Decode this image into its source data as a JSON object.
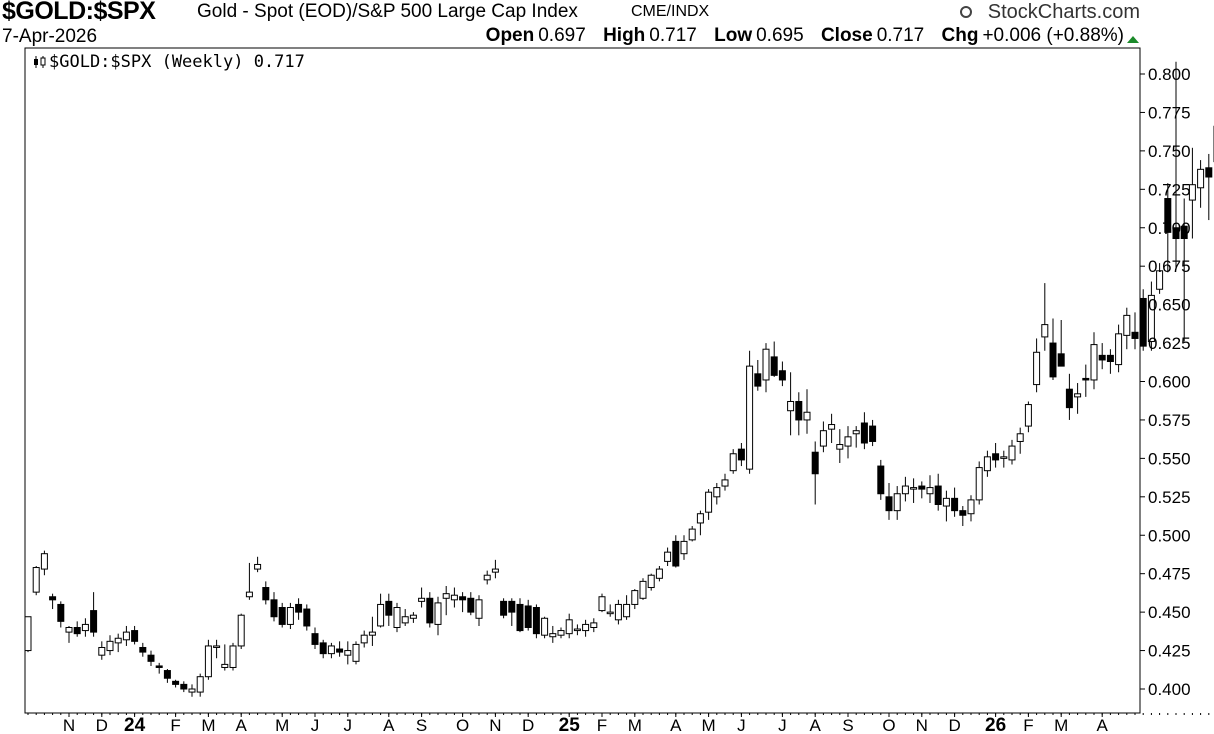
{
  "header": {
    "symbol": "$GOLD:$SPX",
    "description": "Gold - Spot (EOD)/S&P 500 Large Cap Index",
    "exchange": "CME/INDX",
    "brand": "StockCharts.com",
    "date": "7-Apr-2026",
    "ohlc": {
      "open_label": "Open",
      "open": "0.697",
      "high_label": "High",
      "high": "0.717",
      "low_label": "Low",
      "low": "0.695",
      "close_label": "Close",
      "close": "0.717",
      "chg_label": "Chg",
      "chg": "+0.006 (+0.88%)"
    },
    "chg_direction": "up"
  },
  "legend": {
    "text": "$GOLD:$SPX (Weekly) 0.717",
    "icon": "candlestick-icon"
  },
  "colors": {
    "candle_line": "#000000",
    "up_fill": "#ffffff",
    "down_fill": "#000000",
    "up_arrow": "#1b8a2a",
    "grid": "#dddddd"
  },
  "chart_data": {
    "type": "candlestick",
    "title": "$GOLD:$SPX (Weekly) 0.717",
    "xlabel": "",
    "ylabel": "",
    "ylim": [
      0.388,
      0.81
    ],
    "grid": false,
    "y_ticks": [
      "0.400",
      "0.425",
      "0.450",
      "0.475",
      "0.500",
      "0.525",
      "0.550",
      "0.575",
      "0.600",
      "0.625",
      "0.650",
      "0.675",
      "0.700",
      "0.725",
      "0.750",
      "0.775",
      "0.800"
    ],
    "x_labels": [
      {
        "label": "N",
        "week": 5
      },
      {
        "label": "D",
        "week": 9
      },
      {
        "label": "24",
        "week": 13
      },
      {
        "label": "F",
        "week": 18
      },
      {
        "label": "M",
        "week": 22
      },
      {
        "label": "A",
        "week": 26
      },
      {
        "label": "M",
        "week": 31
      },
      {
        "label": "J",
        "week": 35
      },
      {
        "label": "J",
        "week": 39
      },
      {
        "label": "A",
        "week": 44
      },
      {
        "label": "S",
        "week": 48
      },
      {
        "label": "O",
        "week": 53
      },
      {
        "label": "N",
        "week": 57
      },
      {
        "label": "D",
        "week": 61
      },
      {
        "label": "25",
        "week": 66
      },
      {
        "label": "F",
        "week": 70
      },
      {
        "label": "M",
        "week": 74
      },
      {
        "label": "A",
        "week": 79
      },
      {
        "label": "M",
        "week": 83
      },
      {
        "label": "J",
        "week": 87
      },
      {
        "label": "J",
        "week": 92
      },
      {
        "label": "A",
        "week": 96
      },
      {
        "label": "S",
        "week": 100
      },
      {
        "label": "O",
        "week": 105
      },
      {
        "label": "N",
        "week": 109
      },
      {
        "label": "D",
        "week": 113
      },
      {
        "label": "26",
        "week": 118
      },
      {
        "label": "F",
        "week": 122
      },
      {
        "label": "M",
        "week": 126
      },
      {
        "label": "A",
        "week": 131
      }
    ],
    "candles": [
      [
        0.425,
        0.447,
        0.424,
        0.447
      ],
      [
        0.463,
        0.48,
        0.461,
        0.479
      ],
      [
        0.478,
        0.49,
        0.474,
        0.488
      ],
      [
        0.46,
        0.462,
        0.452,
        0.458
      ],
      [
        0.455,
        0.457,
        0.44,
        0.444
      ],
      [
        0.437,
        0.441,
        0.43,
        0.44
      ],
      [
        0.44,
        0.444,
        0.434,
        0.436
      ],
      [
        0.438,
        0.446,
        0.434,
        0.442
      ],
      [
        0.451,
        0.463,
        0.434,
        0.437
      ],
      [
        0.422,
        0.431,
        0.419,
        0.427
      ],
      [
        0.425,
        0.435,
        0.422,
        0.431
      ],
      [
        0.43,
        0.436,
        0.424,
        0.433
      ],
      [
        0.432,
        0.441,
        0.428,
        0.437
      ],
      [
        0.438,
        0.441,
        0.429,
        0.431
      ],
      [
        0.427,
        0.43,
        0.421,
        0.424
      ],
      [
        0.422,
        0.425,
        0.415,
        0.418
      ],
      [
        0.415,
        0.417,
        0.41,
        0.414
      ],
      [
        0.412,
        0.413,
        0.404,
        0.407
      ],
      [
        0.405,
        0.406,
        0.401,
        0.403
      ],
      [
        0.403,
        0.405,
        0.398,
        0.4
      ],
      [
        0.398,
        0.403,
        0.395,
        0.4
      ],
      [
        0.398,
        0.41,
        0.395,
        0.408
      ],
      [
        0.408,
        0.432,
        0.406,
        0.428
      ],
      [
        0.428,
        0.432,
        0.42,
        0.428
      ],
      [
        0.414,
        0.429,
        0.412,
        0.416
      ],
      [
        0.414,
        0.43,
        0.412,
        0.428
      ],
      [
        0.428,
        0.449,
        0.426,
        0.448
      ],
      [
        0.46,
        0.482,
        0.458,
        0.463
      ],
      [
        0.478,
        0.486,
        0.476,
        0.481
      ],
      [
        0.466,
        0.47,
        0.455,
        0.458
      ],
      [
        0.458,
        0.463,
        0.444,
        0.447
      ],
      [
        0.453,
        0.456,
        0.44,
        0.442
      ],
      [
        0.442,
        0.456,
        0.439,
        0.453
      ],
      [
        0.455,
        0.459,
        0.445,
        0.45
      ],
      [
        0.452,
        0.455,
        0.438,
        0.441
      ],
      [
        0.436,
        0.44,
        0.426,
        0.429
      ],
      [
        0.43,
        0.432,
        0.42,
        0.423
      ],
      [
        0.423,
        0.43,
        0.42,
        0.428
      ],
      [
        0.426,
        0.431,
        0.421,
        0.424
      ],
      [
        0.422,
        0.431,
        0.416,
        0.425
      ],
      [
        0.418,
        0.431,
        0.416,
        0.429
      ],
      [
        0.43,
        0.438,
        0.427,
        0.435
      ],
      [
        0.435,
        0.447,
        0.428,
        0.437
      ],
      [
        0.441,
        0.462,
        0.44,
        0.455
      ],
      [
        0.457,
        0.462,
        0.441,
        0.448
      ],
      [
        0.44,
        0.456,
        0.437,
        0.453
      ],
      [
        0.443,
        0.452,
        0.441,
        0.447
      ],
      [
        0.446,
        0.45,
        0.443,
        0.448
      ],
      [
        0.457,
        0.466,
        0.453,
        0.459
      ],
      [
        0.459,
        0.463,
        0.44,
        0.443
      ],
      [
        0.442,
        0.46,
        0.435,
        0.456
      ],
      [
        0.459,
        0.467,
        0.448,
        0.462
      ],
      [
        0.458,
        0.466,
        0.453,
        0.461
      ],
      [
        0.46,
        0.463,
        0.45,
        0.458
      ],
      [
        0.459,
        0.463,
        0.448,
        0.45
      ],
      [
        0.446,
        0.461,
        0.441,
        0.458
      ],
      [
        0.471,
        0.477,
        0.468,
        0.474
      ],
      [
        0.476,
        0.484,
        0.472,
        0.478
      ],
      [
        0.457,
        0.459,
        0.446,
        0.448
      ],
      [
        0.457,
        0.459,
        0.441,
        0.45
      ],
      [
        0.455,
        0.459,
        0.437,
        0.438
      ],
      [
        0.454,
        0.458,
        0.438,
        0.44
      ],
      [
        0.453,
        0.455,
        0.433,
        0.436
      ],
      [
        0.435,
        0.447,
        0.433,
        0.446
      ],
      [
        0.434,
        0.441,
        0.43,
        0.436
      ],
      [
        0.435,
        0.44,
        0.433,
        0.438
      ],
      [
        0.436,
        0.449,
        0.433,
        0.445
      ],
      [
        0.438,
        0.442,
        0.435,
        0.439
      ],
      [
        0.438,
        0.445,
        0.434,
        0.442
      ],
      [
        0.44,
        0.446,
        0.437,
        0.443
      ],
      [
        0.451,
        0.462,
        0.45,
        0.46
      ],
      [
        0.449,
        0.455,
        0.447,
        0.45
      ],
      [
        0.445,
        0.458,
        0.442,
        0.455
      ],
      [
        0.447,
        0.461,
        0.445,
        0.455
      ],
      [
        0.455,
        0.465,
        0.452,
        0.464
      ],
      [
        0.459,
        0.472,
        0.458,
        0.47
      ],
      [
        0.466,
        0.475,
        0.464,
        0.474
      ],
      [
        0.472,
        0.48,
        0.47,
        0.478
      ],
      [
        0.483,
        0.492,
        0.48,
        0.489
      ],
      [
        0.496,
        0.5,
        0.479,
        0.48
      ],
      [
        0.488,
        0.5,
        0.484,
        0.496
      ],
      [
        0.497,
        0.506,
        0.496,
        0.504
      ],
      [
        0.508,
        0.516,
        0.5,
        0.514
      ],
      [
        0.515,
        0.53,
        0.51,
        0.528
      ],
      [
        0.525,
        0.534,
        0.52,
        0.531
      ],
      [
        0.532,
        0.54,
        0.529,
        0.536
      ],
      [
        0.542,
        0.556,
        0.54,
        0.553
      ],
      [
        0.556,
        0.56,
        0.545,
        0.549
      ],
      [
        0.543,
        0.62,
        0.54,
        0.61
      ],
      [
        0.605,
        0.614,
        0.594,
        0.597
      ],
      [
        0.601,
        0.625,
        0.593,
        0.621
      ],
      [
        0.616,
        0.626,
        0.603,
        0.604
      ],
      [
        0.607,
        0.613,
        0.597,
        0.601
      ],
      [
        0.581,
        0.606,
        0.565,
        0.587
      ],
      [
        0.587,
        0.593,
        0.565,
        0.575
      ],
      [
        0.575,
        0.595,
        0.566,
        0.58
      ],
      [
        0.554,
        0.561,
        0.52,
        0.54
      ],
      [
        0.558,
        0.574,
        0.554,
        0.568
      ],
      [
        0.569,
        0.579,
        0.56,
        0.572
      ],
      [
        0.556,
        0.569,
        0.547,
        0.559
      ],
      [
        0.558,
        0.571,
        0.55,
        0.564
      ],
      [
        0.566,
        0.571,
        0.557,
        0.568
      ],
      [
        0.573,
        0.58,
        0.556,
        0.56
      ],
      [
        0.571,
        0.575,
        0.558,
        0.561
      ],
      [
        0.545,
        0.549,
        0.523,
        0.527
      ],
      [
        0.525,
        0.534,
        0.51,
        0.516
      ],
      [
        0.516,
        0.532,
        0.51,
        0.527
      ],
      [
        0.527,
        0.538,
        0.522,
        0.532
      ],
      [
        0.53,
        0.537,
        0.521,
        0.531
      ],
      [
        0.532,
        0.535,
        0.524,
        0.53
      ],
      [
        0.527,
        0.539,
        0.521,
        0.531
      ],
      [
        0.532,
        0.54,
        0.516,
        0.52
      ],
      [
        0.519,
        0.529,
        0.509,
        0.524
      ],
      [
        0.524,
        0.531,
        0.512,
        0.516
      ],
      [
        0.516,
        0.519,
        0.506,
        0.513
      ],
      [
        0.514,
        0.526,
        0.509,
        0.523
      ],
      [
        0.523,
        0.548,
        0.52,
        0.544
      ],
      [
        0.542,
        0.555,
        0.538,
        0.551
      ],
      [
        0.553,
        0.56,
        0.544,
        0.549
      ],
      [
        0.55,
        0.555,
        0.544,
        0.551
      ],
      [
        0.549,
        0.562,
        0.546,
        0.558
      ],
      [
        0.561,
        0.57,
        0.553,
        0.566
      ],
      [
        0.571,
        0.587,
        0.567,
        0.585
      ],
      [
        0.598,
        0.628,
        0.593,
        0.619
      ],
      [
        0.629,
        0.664,
        0.62,
        0.637
      ],
      [
        0.625,
        0.641,
        0.601,
        0.603
      ],
      [
        0.618,
        0.64,
        0.61,
        0.61
      ],
      [
        0.595,
        0.605,
        0.575,
        0.583
      ],
      [
        0.59,
        0.599,
        0.579,
        0.592
      ],
      [
        0.602,
        0.611,
        0.59,
        0.601
      ],
      [
        0.601,
        0.632,
        0.595,
        0.624
      ],
      [
        0.617,
        0.625,
        0.608,
        0.614
      ],
      [
        0.617,
        0.621,
        0.605,
        0.613
      ],
      [
        0.611,
        0.637,
        0.606,
        0.631
      ],
      [
        0.63,
        0.648,
        0.621,
        0.643
      ],
      [
        0.632,
        0.645,
        0.621,
        0.628
      ],
      [
        0.654,
        0.66,
        0.62,
        0.623
      ],
      [
        0.626,
        0.665,
        0.62,
        0.656
      ],
      [
        0.66,
        0.677,
        0.657,
        0.672
      ],
      [
        0.719,
        0.729,
        0.671,
        0.697
      ],
      [
        0.7,
        0.808,
        0.674,
        0.693
      ],
      [
        0.701,
        0.719,
        0.626,
        0.693
      ],
      [
        0.718,
        0.752,
        0.693,
        0.728
      ],
      [
        0.726,
        0.744,
        0.713,
        0.738
      ],
      [
        0.739,
        0.748,
        0.705,
        0.733
      ],
      [
        0.743,
        0.776,
        0.741,
        0.766
      ],
      [
        0.764,
        0.796,
        0.756,
        0.769
      ],
      [
        0.8,
        0.806,
        0.75,
        0.76
      ],
      [
        0.765,
        0.78,
        0.735,
        0.757
      ],
      [
        0.773,
        0.777,
        0.693,
        0.698
      ],
      [
        0.693,
        0.718,
        0.655,
        0.698
      ],
      [
        0.704,
        0.715,
        0.645,
        0.698
      ],
      [
        0.694,
        0.717,
        0.68,
        0.704
      ],
      [
        0.698,
        0.728,
        0.672,
        0.72
      ],
      [
        0.7,
        0.725,
        0.694,
        0.717
      ]
    ]
  }
}
